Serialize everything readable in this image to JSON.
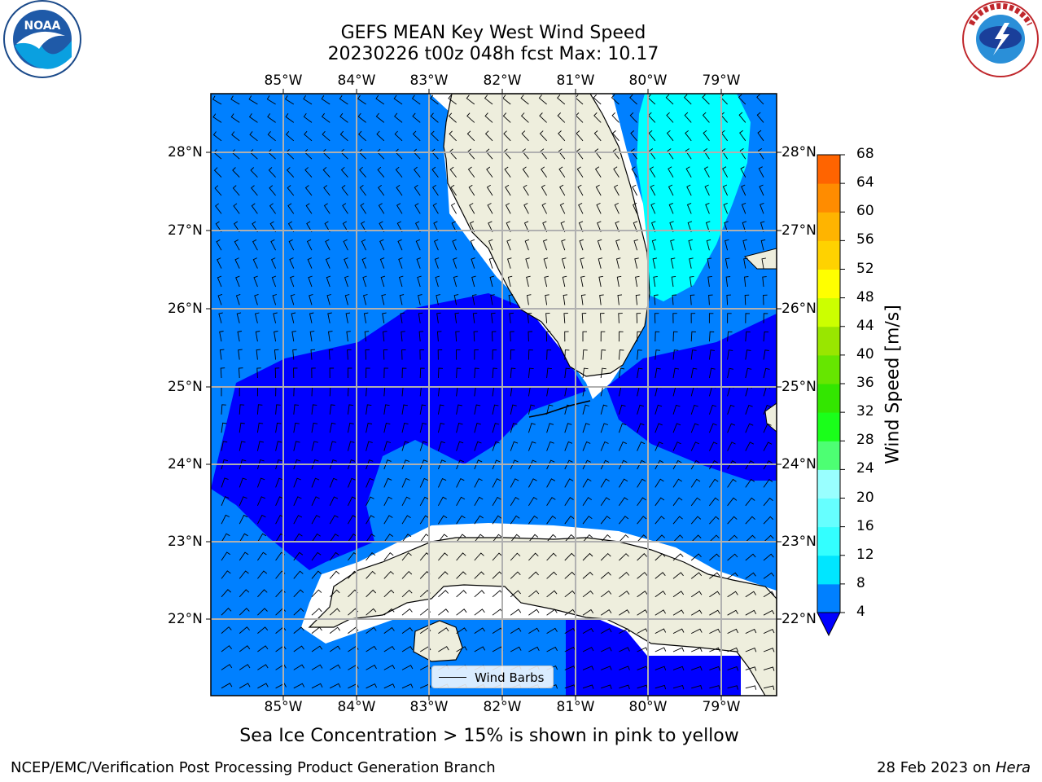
{
  "header": {
    "title_line1": "GEFS MEAN Key West Wind Speed",
    "title_line2": "20230226 t00z 048h fcst   Max: 10.17"
  },
  "logos": {
    "left": {
      "name": "noaa-logo",
      "text": "NOAA"
    },
    "right": {
      "name": "nws-logo",
      "text": "NATIONAL WEATHER SERVICE"
    }
  },
  "map": {
    "lon_labels": [
      "85°W",
      "84°W",
      "83°W",
      "82°W",
      "81°W",
      "80°W",
      "79°W"
    ],
    "lat_labels": [
      "28°N",
      "27°N",
      "26°N",
      "25°N",
      "24°N",
      "23°N",
      "22°N"
    ],
    "legend_label": "Wind Barbs",
    "colors": {
      "land": "#eeeedd",
      "level_4_8": "#0080ff",
      "level_below_4": "#0000ff",
      "level_8_12": "#00ffff",
      "grid": "#b0b0b0"
    }
  },
  "colorbar": {
    "label": "Wind Speed [m/s]",
    "ticks": [
      "4",
      "8",
      "12",
      "16",
      "20",
      "24",
      "28",
      "32",
      "36",
      "40",
      "44",
      "48",
      "52",
      "56",
      "60",
      "64",
      "68"
    ],
    "colors": [
      "#0080ff",
      "#00e6ff",
      "#33ffff",
      "#66ffff",
      "#99ffff",
      "#4dff73",
      "#1aff1a",
      "#33e600",
      "#66e600",
      "#99e600",
      "#ccff00",
      "#ffff00",
      "#ffd200",
      "#ffb400",
      "#ff8c00",
      "#ff6400",
      "#ff3c00",
      "#ff0000"
    ],
    "extend_color": "#0000ff"
  },
  "footer": {
    "sea_ice_note": "Sea Ice Concentration > 15% is shown in pink to yellow",
    "branch": "NCEP/EMC/Verification Post Processing Product Generation Branch",
    "date": "28 Feb 2023 on ",
    "host": "Hera"
  }
}
